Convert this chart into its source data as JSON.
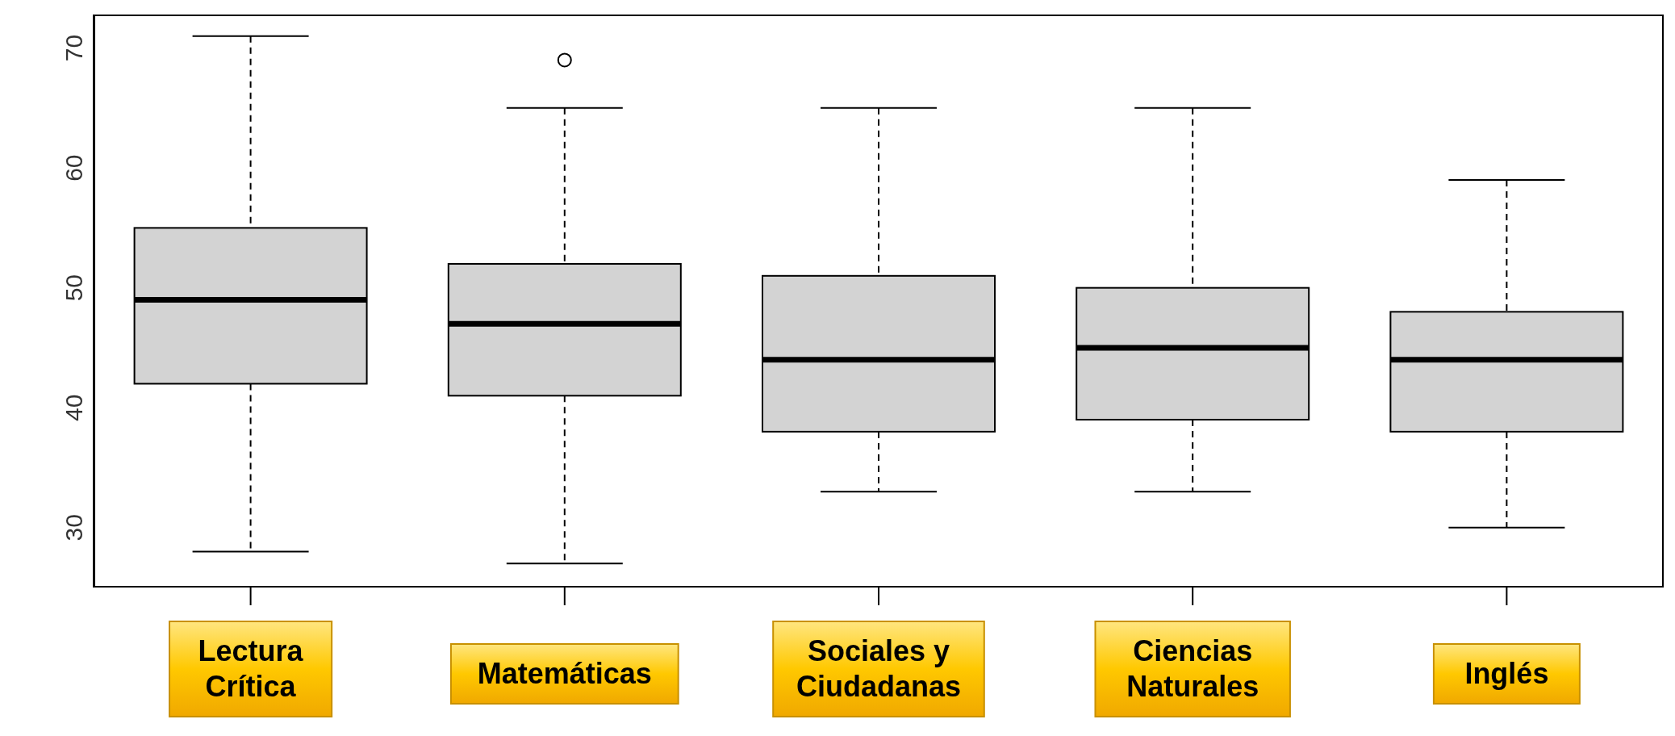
{
  "chart_data": {
    "type": "box",
    "categories": [
      "Lectura Crítica",
      "Matemáticas",
      "Sociales y Ciudadanas",
      "Ciencias Naturales",
      "Inglés"
    ],
    "color": "#d3d3d3",
    "boxes": [
      {
        "low": 28,
        "q1": 42,
        "median": 49,
        "q3": 55,
        "high": 71
      },
      {
        "low": 27,
        "q1": 41,
        "median": 47,
        "q3": 52,
        "high": 65,
        "outliers": [
          69
        ]
      },
      {
        "low": 33,
        "q1": 38,
        "median": 44,
        "q3": 51,
        "high": 65
      },
      {
        "low": 33,
        "q1": 39,
        "median": 45,
        "q3": 50,
        "high": 65
      },
      {
        "low": 30,
        "q1": 38,
        "median": 44,
        "q3": 48,
        "high": 59
      }
    ],
    "ylim": [
      25,
      72.8
    ],
    "yticks": [
      30,
      40,
      50,
      60,
      70
    ]
  }
}
